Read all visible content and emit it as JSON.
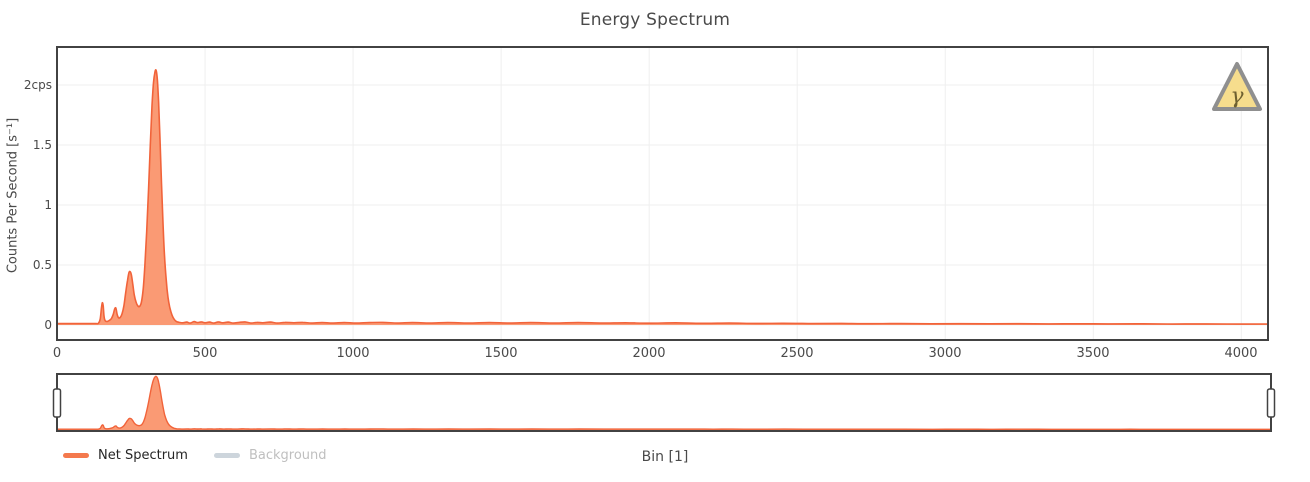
{
  "header": {
    "title": "Energy Spectrum"
  },
  "chart_data": {
    "type": "area",
    "title": "Energy Spectrum",
    "xlabel": "Bin [1]",
    "ylabel": "Counts Per Second [s⁻¹]",
    "xlim": [
      0,
      4090
    ],
    "ylim": [
      -0.125,
      2.32
    ],
    "grid": true,
    "x_tick_values": [
      0,
      500,
      1000,
      1500,
      2000,
      2500,
      3000,
      3500,
      4000
    ],
    "x_tick_labels": [
      "0",
      "500",
      "1000",
      "1500",
      "2000",
      "2500",
      "3000",
      "3500",
      "4000"
    ],
    "y_tick_values": [
      0,
      0.5,
      1,
      1.5,
      2
    ],
    "y_tick_labels": [
      "0",
      "0.5",
      "1",
      "1.5",
      "2cps"
    ],
    "legend": {
      "position": "bottom-left",
      "items": [
        {
          "label": "Net Spectrum",
          "color": "#f4794d",
          "text_color": "#262626",
          "enabled": true
        },
        {
          "label": "Background",
          "color": "#cdd5dc",
          "text_color": "#bfbfbf",
          "enabled": false
        }
      ]
    },
    "annotation": {
      "icon": "gamma-warning-triangle",
      "symbol": "γ",
      "fill": "#f6dd8d",
      "border": "#8f8f8f",
      "symbol_color": "#6e6030"
    },
    "navigator": {
      "present": true,
      "range_start": 0,
      "range_end": 4090
    },
    "series": [
      {
        "name": "Net Spectrum",
        "line_color": "#f1633a",
        "fill_color": "#fa9a74",
        "points": [
          [
            0,
            0.012
          ],
          [
            50,
            0.012
          ],
          [
            100,
            0.012
          ],
          [
            130,
            0.012
          ],
          [
            140,
            0.015
          ],
          [
            146,
            0.05
          ],
          [
            150,
            0.14
          ],
          [
            153,
            0.185
          ],
          [
            156,
            0.16
          ],
          [
            159,
            0.07
          ],
          [
            163,
            0.035
          ],
          [
            170,
            0.03
          ],
          [
            177,
            0.038
          ],
          [
            184,
            0.055
          ],
          [
            190,
            0.09
          ],
          [
            195,
            0.135
          ],
          [
            199,
            0.14
          ],
          [
            203,
            0.09
          ],
          [
            208,
            0.06
          ],
          [
            214,
            0.065
          ],
          [
            220,
            0.095
          ],
          [
            226,
            0.16
          ],
          [
            232,
            0.27
          ],
          [
            238,
            0.37
          ],
          [
            243,
            0.435
          ],
          [
            247,
            0.445
          ],
          [
            251,
            0.42
          ],
          [
            256,
            0.34
          ],
          [
            261,
            0.25
          ],
          [
            267,
            0.19
          ],
          [
            273,
            0.16
          ],
          [
            279,
            0.155
          ],
          [
            285,
            0.19
          ],
          [
            291,
            0.3
          ],
          [
            297,
            0.5
          ],
          [
            303,
            0.78
          ],
          [
            309,
            1.12
          ],
          [
            315,
            1.5
          ],
          [
            321,
            1.83
          ],
          [
            326,
            2.02
          ],
          [
            331,
            2.11
          ],
          [
            335,
            2.12
          ],
          [
            339,
            2.04
          ],
          [
            343,
            1.86
          ],
          [
            348,
            1.55
          ],
          [
            353,
            1.18
          ],
          [
            358,
            0.85
          ],
          [
            363,
            0.58
          ],
          [
            369,
            0.37
          ],
          [
            375,
            0.23
          ],
          [
            381,
            0.145
          ],
          [
            388,
            0.085
          ],
          [
            395,
            0.05
          ],
          [
            403,
            0.03
          ],
          [
            413,
            0.022
          ],
          [
            425,
            0.018
          ],
          [
            438,
            0.024
          ],
          [
            450,
            0.016
          ],
          [
            463,
            0.028
          ],
          [
            475,
            0.02
          ],
          [
            488,
            0.026
          ],
          [
            500,
            0.018
          ],
          [
            515,
            0.024
          ],
          [
            530,
            0.016
          ],
          [
            545,
            0.026
          ],
          [
            560,
            0.018
          ],
          [
            578,
            0.024
          ],
          [
            596,
            0.016
          ],
          [
            615,
            0.022
          ],
          [
            635,
            0.026
          ],
          [
            655,
            0.016
          ],
          [
            675,
            0.022
          ],
          [
            695,
            0.018
          ],
          [
            720,
            0.024
          ],
          [
            745,
            0.016
          ],
          [
            770,
            0.022
          ],
          [
            800,
            0.018
          ],
          [
            830,
            0.022
          ],
          [
            860,
            0.016
          ],
          [
            895,
            0.02
          ],
          [
            930,
            0.016
          ],
          [
            970,
            0.02
          ],
          [
            1010,
            0.016
          ],
          [
            1055,
            0.02
          ],
          [
            1100,
            0.022
          ],
          [
            1150,
            0.016
          ],
          [
            1200,
            0.02
          ],
          [
            1260,
            0.016
          ],
          [
            1320,
            0.02
          ],
          [
            1390,
            0.016
          ],
          [
            1460,
            0.02
          ],
          [
            1530,
            0.016
          ],
          [
            1600,
            0.02
          ],
          [
            1680,
            0.016
          ],
          [
            1760,
            0.02
          ],
          [
            1840,
            0.016
          ],
          [
            1920,
            0.018
          ],
          [
            2000,
            0.015
          ],
          [
            2090,
            0.018
          ],
          [
            2180,
            0.014
          ],
          [
            2270,
            0.016
          ],
          [
            2360,
            0.013
          ],
          [
            2450,
            0.014
          ],
          [
            2550,
            0.012
          ],
          [
            2650,
            0.013
          ],
          [
            2750,
            0.011
          ],
          [
            2850,
            0.012
          ],
          [
            2950,
            0.01
          ],
          [
            3050,
            0.011
          ],
          [
            3150,
            0.01
          ],
          [
            3250,
            0.011
          ],
          [
            3350,
            0.009
          ],
          [
            3450,
            0.01
          ],
          [
            3550,
            0.009
          ],
          [
            3650,
            0.01
          ],
          [
            3750,
            0.008
          ],
          [
            3850,
            0.009
          ],
          [
            3950,
            0.008
          ],
          [
            4090,
            0.008
          ]
        ]
      },
      {
        "name": "Background",
        "visible": false
      }
    ]
  },
  "colors": {
    "plot_border": "#424242",
    "gridline": "#efefef",
    "tick_text": "#4a4a4a"
  }
}
